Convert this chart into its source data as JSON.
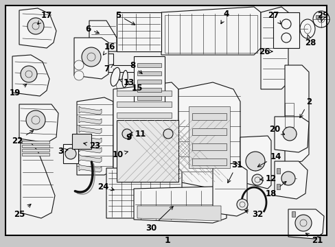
{
  "bg_color": "#c8c8c8",
  "border_color": "#000000",
  "fig_width": 4.89,
  "fig_height": 3.6,
  "dpi": 100,
  "font_size": 8.5,
  "lw_main": 0.8,
  "lw_thin": 0.4,
  "part_color": "#f5f5f5",
  "edge_color": "#111111",
  "shade_color": "#aaaaaa",
  "inner_color": "#dddddd"
}
